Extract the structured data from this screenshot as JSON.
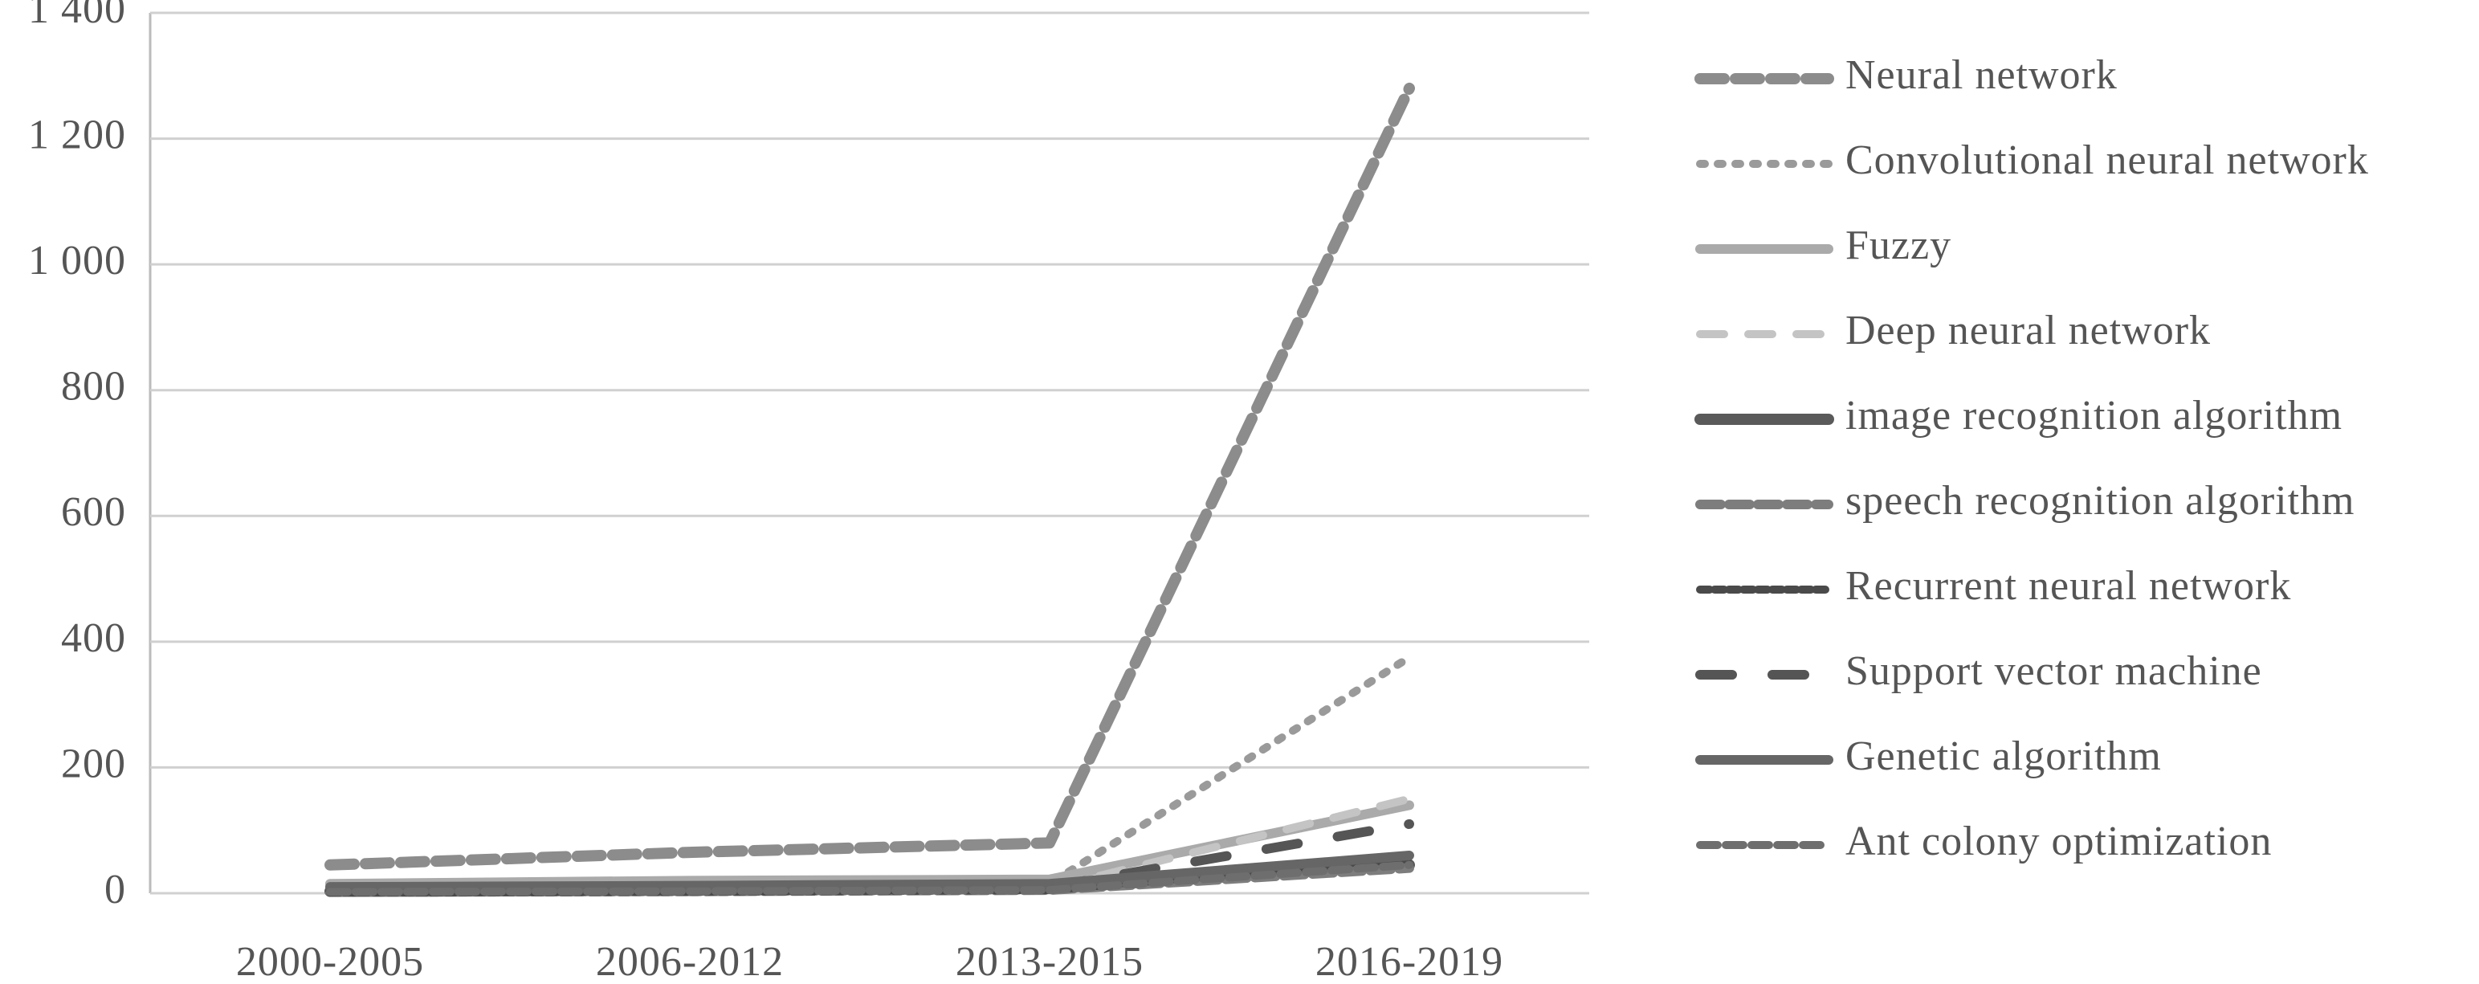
{
  "chart_data": {
    "type": "line",
    "categories": [
      "2000-2005",
      "2006-2012",
      "2013-2015",
      "2016-2019"
    ],
    "ylim": [
      0,
      1400
    ],
    "yticks": [
      0,
      200,
      400,
      600,
      800,
      {
        "value": 1000,
        "label": "1 000"
      },
      {
        "value": 1200,
        "label": "1 200"
      },
      {
        "value": 1400,
        "label": "1 400"
      }
    ],
    "grid": true,
    "legend": "right",
    "series": [
      {
        "name": "Neural network",
        "color": "#8c8c8c",
        "values": [
          45,
          65,
          80,
          1280
        ]
      },
      {
        "name": "Convolutional neural network",
        "color": "#9a9a9a",
        "values": [
          3,
          5,
          15,
          375
        ]
      },
      {
        "name": "Fuzzy",
        "color": "#aaaaaa",
        "values": [
          15,
          20,
          22,
          140
        ]
      },
      {
        "name": "Deep neural network",
        "color": "#c4c4c4",
        "values": [
          2,
          3,
          8,
          150
        ]
      },
      {
        "name": "image recognition algorithm",
        "color": "#5a5a5a",
        "values": [
          3,
          5,
          8,
          45
        ]
      },
      {
        "name": "speech recognition algorithm",
        "color": "#7d7d7d",
        "values": [
          2,
          3,
          5,
          40
        ]
      },
      {
        "name": "Recurrent neural network",
        "color": "#4a4a4a",
        "values": [
          1,
          2,
          5,
          55
        ]
      },
      {
        "name": "Support vector machine",
        "color": "#555555",
        "values": [
          5,
          8,
          10,
          110
        ]
      },
      {
        "name": "Genetic algorithm",
        "color": "#666666",
        "values": [
          10,
          12,
          15,
          60
        ]
      },
      {
        "name": "Ant colony optimization",
        "color": "#6e6e6e",
        "values": [
          2,
          3,
          5,
          45
        ]
      }
    ]
  }
}
